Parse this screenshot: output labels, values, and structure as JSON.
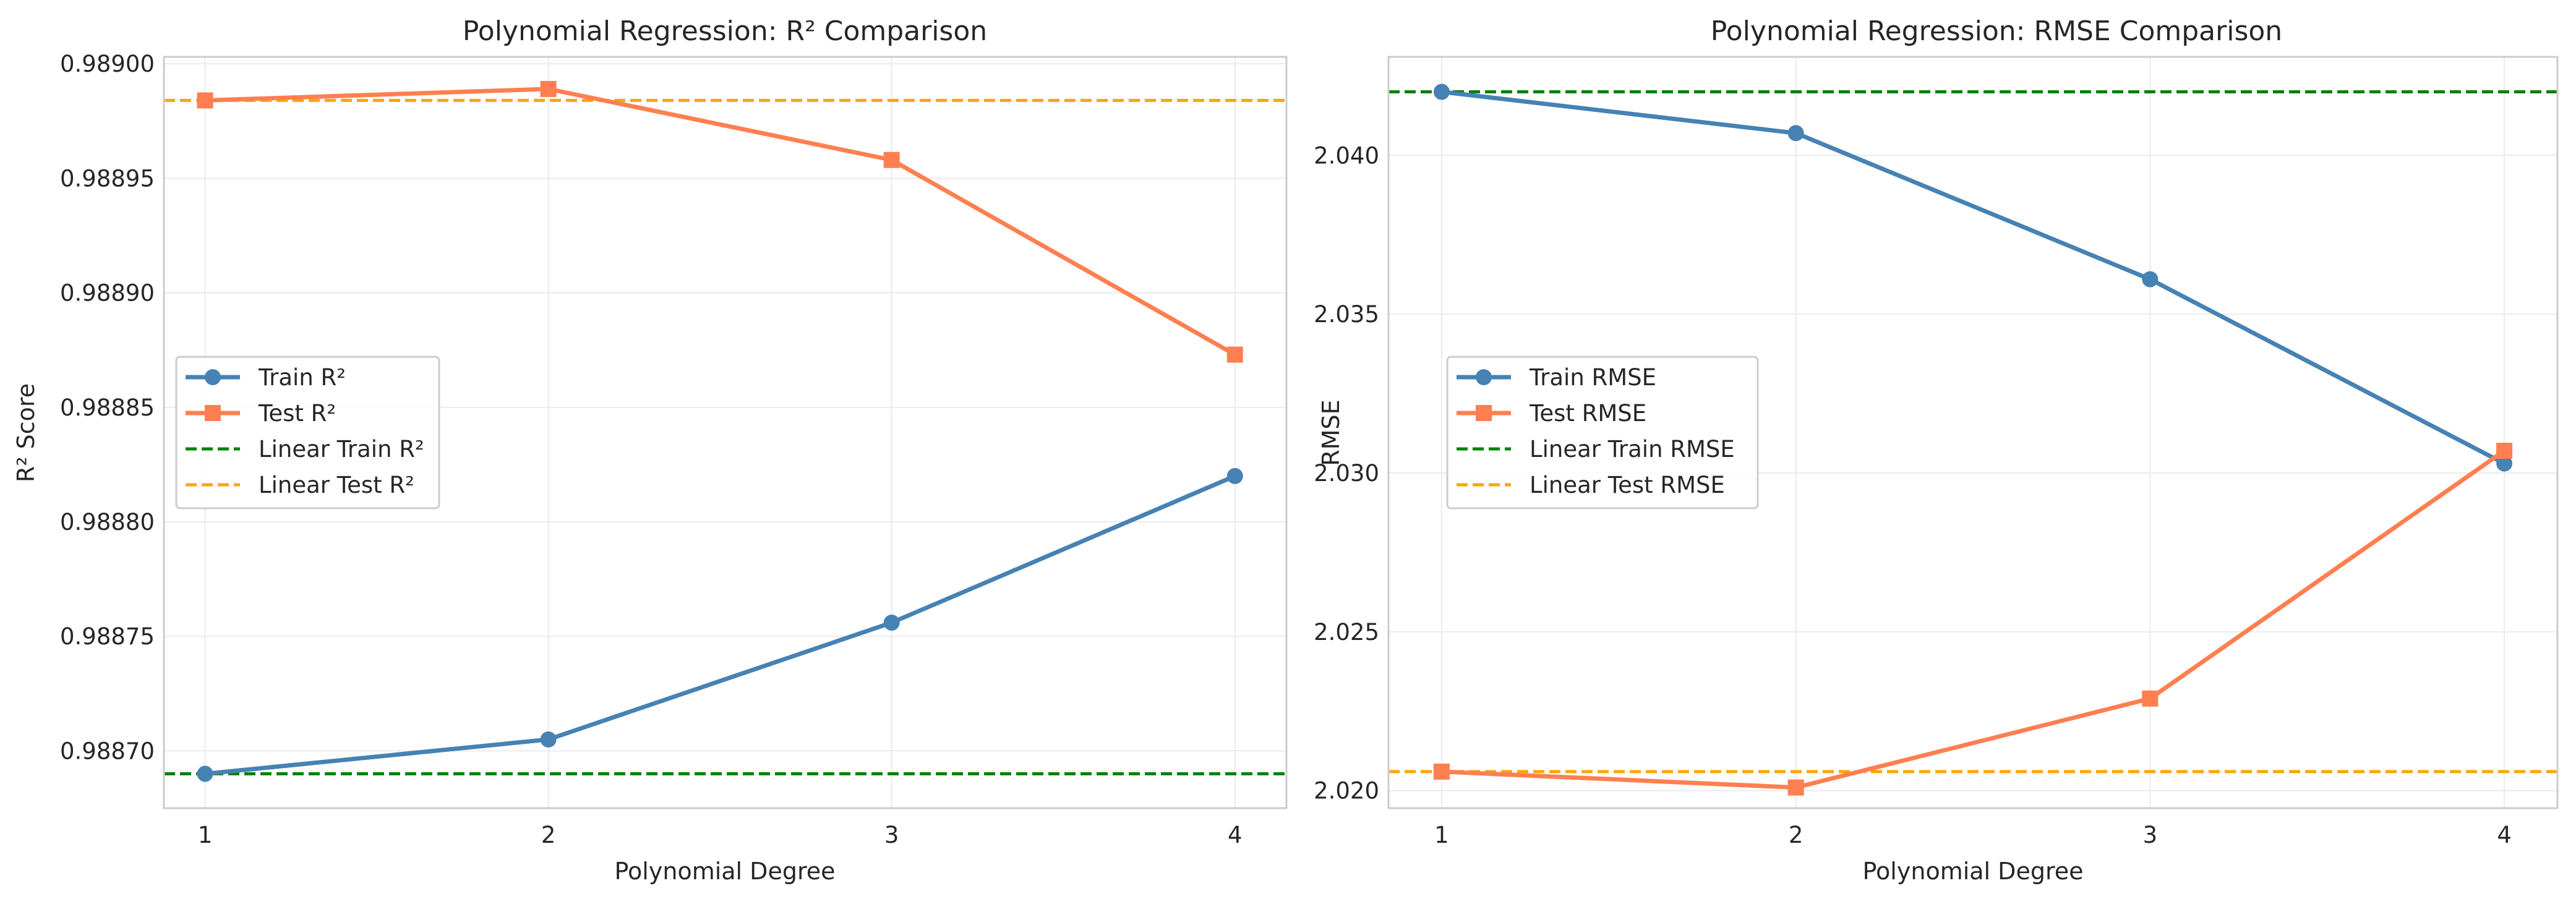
{
  "chart_data": [
    {
      "type": "line",
      "title": "Polynomial Regression: R² Comparison",
      "xlabel": "Polynomial Degree",
      "ylabel": "R² Score",
      "x": [
        1,
        2,
        3,
        4
      ],
      "xlim": [
        0.88,
        4.15
      ],
      "ylim": [
        0.988675,
        0.989003
      ],
      "yticks": [
        0.9887,
        0.98875,
        0.9888,
        0.98885,
        0.9889,
        0.98895,
        0.989
      ],
      "ytick_labels": [
        "0.98870",
        "0.98875",
        "0.98880",
        "0.98885",
        "0.98890",
        "0.98895",
        "0.98900"
      ],
      "grid": true,
      "legend": "center-left",
      "series": [
        {
          "name": "Train R²",
          "values": [
            0.98869,
            0.988705,
            0.988756,
            0.98882
          ],
          "color": "#4682b4",
          "marker": "circle",
          "style": "solid"
        },
        {
          "name": "Test R²",
          "values": [
            0.988984,
            0.988989,
            0.988958,
            0.988873
          ],
          "color": "#ff7f50",
          "marker": "square",
          "style": "solid"
        }
      ],
      "reference_lines": [
        {
          "name": "Linear Train R²",
          "value": 0.98869,
          "color": "#008000"
        },
        {
          "name": "Linear Test R²",
          "value": 0.988984,
          "color": "#ffa500"
        }
      ]
    },
    {
      "type": "line",
      "title": "Polynomial Regression: RMSE Comparison",
      "xlabel": "Polynomial Degree",
      "ylabel": "RMSE",
      "x": [
        1,
        2,
        3,
        4
      ],
      "xlim": [
        0.85,
        4.15
      ],
      "ylim": [
        2.01945,
        2.0431
      ],
      "yticks": [
        2.02,
        2.025,
        2.03,
        2.035,
        2.04
      ],
      "ytick_labels": [
        "2.020",
        "2.025",
        "2.030",
        "2.035",
        "2.040"
      ],
      "grid": true,
      "legend": "center-left",
      "series": [
        {
          "name": "Train RMSE",
          "values": [
            2.042,
            2.0407,
            2.0361,
            2.0303
          ],
          "color": "#4682b4",
          "marker": "circle",
          "style": "solid"
        },
        {
          "name": "Test RMSE",
          "values": [
            2.0206,
            2.0201,
            2.0229,
            2.0307
          ],
          "color": "#ff7f50",
          "marker": "square",
          "style": "solid"
        }
      ],
      "reference_lines": [
        {
          "name": "Linear Train RMSE",
          "value": 2.042,
          "color": "#008000"
        },
        {
          "name": "Linear Test RMSE",
          "value": 2.0206,
          "color": "#ffa500"
        }
      ]
    }
  ]
}
